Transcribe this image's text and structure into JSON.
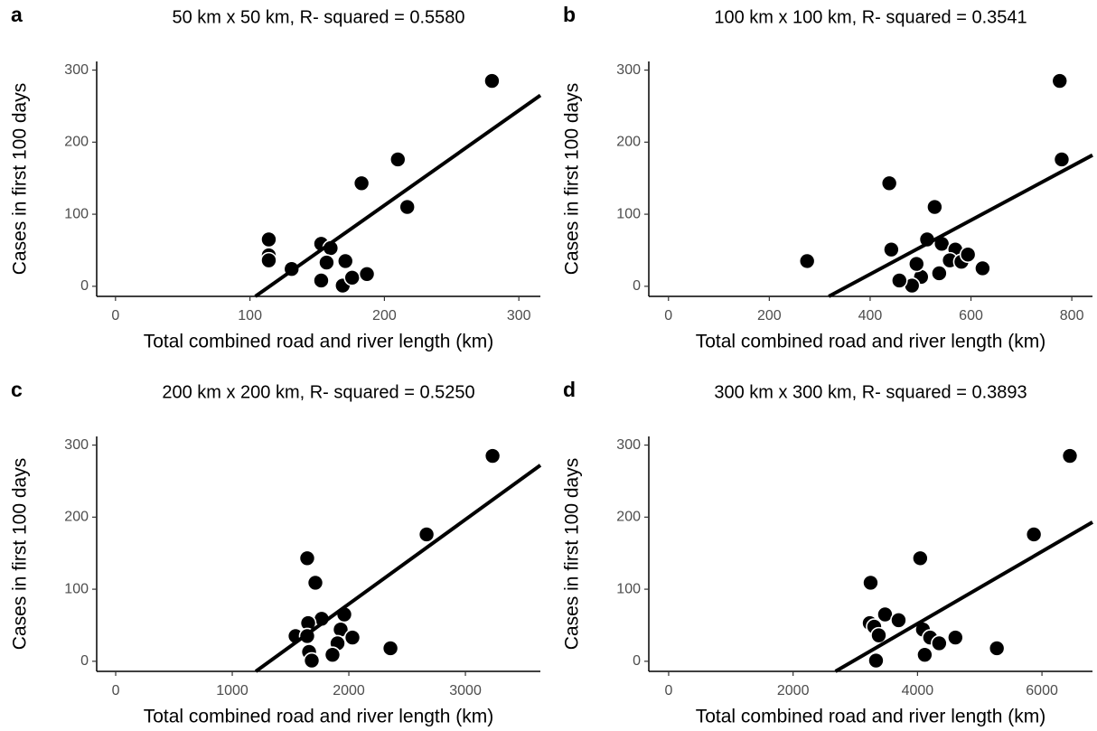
{
  "chart_data": [
    {
      "type": "scatter",
      "panel_label": "a",
      "title": "50 km x 50 km, R- squared = 0.5580",
      "x_label": "Total combined road and river length (km)",
      "y_label": "Cases in first 100 days",
      "color": "#000000",
      "x": [
        280,
        210,
        183,
        217,
        114,
        114,
        114,
        131,
        153,
        160,
        157,
        171,
        153,
        169,
        176,
        187
      ],
      "y": [
        285,
        176,
        143,
        110,
        65,
        43,
        36,
        24,
        59,
        53,
        33,
        35,
        8,
        1,
        12,
        17
      ],
      "xlim": [
        -14,
        316
      ],
      "ylim": [
        -14,
        312
      ],
      "xticks": [
        0,
        100,
        200,
        300
      ],
      "yticks": [
        0,
        100,
        200,
        300
      ],
      "trend_line": {
        "x": [
          104,
          316
        ],
        "y": [
          -14,
          265
        ]
      }
    },
    {
      "type": "scatter",
      "panel_label": "b",
      "title": "100 km x 100 km, R- squared = 0.3541",
      "x_label": "Total combined road and river length (km)",
      "y_label": "Cases in first 100 days",
      "color": "#000000",
      "x": [
        776,
        780,
        438,
        528,
        275,
        442,
        513,
        542,
        569,
        558,
        581,
        594,
        623,
        537,
        501,
        492,
        483,
        458
      ],
      "y": [
        285,
        176,
        143,
        110,
        35,
        51,
        65,
        59,
        51,
        36,
        34,
        44,
        25,
        18,
        13,
        31,
        1,
        8
      ],
      "xlim": [
        -39,
        841
      ],
      "ylim": [
        -14,
        312
      ],
      "xticks": [
        0,
        200,
        400,
        600,
        800
      ],
      "yticks": [
        0,
        100,
        200,
        300
      ],
      "trend_line": {
        "x": [
          318,
          841
        ],
        "y": [
          -14,
          182
        ]
      }
    },
    {
      "type": "scatter",
      "panel_label": "c",
      "title": "200 km x 200 km, R- squared = 0.5250",
      "x_label": "Total combined road and river length (km)",
      "y_label": "Cases in first 100 days",
      "color": "#000000",
      "x": [
        3233,
        2667,
        1643,
        1713,
        1767,
        1961,
        1651,
        1930,
        2031,
        1543,
        1643,
        1903,
        1659,
        2357,
        1860,
        1682
      ],
      "y": [
        285,
        176,
        143,
        109,
        59,
        65,
        53,
        44,
        33,
        35,
        35,
        25,
        13,
        18,
        9,
        1
      ],
      "xlim": [
        -163,
        3643
      ],
      "ylim": [
        -14,
        312
      ],
      "xticks": [
        0,
        1000,
        2000,
        3000
      ],
      "yticks": [
        0,
        100,
        200,
        300
      ],
      "trend_line": {
        "x": [
          1202,
          3643
        ],
        "y": [
          -14,
          272
        ]
      }
    },
    {
      "type": "scatter",
      "panel_label": "d",
      "title": "300 km x 300 km, R- squared = 0.3893",
      "x_label": "Total combined road and river length (km)",
      "y_label": "Cases in first 100 days",
      "color": "#000000",
      "x": [
        6449,
        5870,
        4043,
        3246,
        3232,
        3478,
        3304,
        3696,
        3377,
        4087,
        4203,
        4609,
        4348,
        5275,
        4116,
        3333
      ],
      "y": [
        285,
        176,
        143,
        109,
        53,
        65,
        48,
        57,
        36,
        44,
        33,
        33,
        25,
        18,
        9,
        1
      ],
      "xlim": [
        -319,
        6812
      ],
      "ylim": [
        -14,
        312
      ],
      "xticks": [
        0,
        2000,
        4000,
        6000
      ],
      "yticks": [
        0,
        100,
        200,
        300
      ],
      "trend_line": {
        "x": [
          2681,
          6812
        ],
        "y": [
          -14,
          193
        ]
      }
    }
  ]
}
